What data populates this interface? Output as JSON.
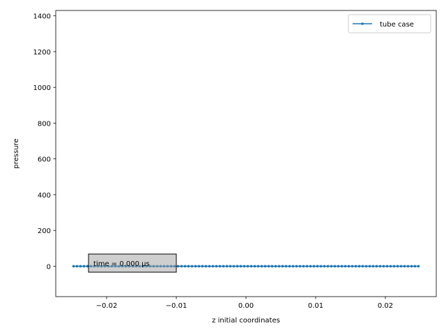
{
  "chart_data": {
    "type": "line",
    "xlabel": "z initial coordinates",
    "ylabel": "pressure",
    "xlim": [
      -0.0273,
      0.0273
    ],
    "ylim": [
      -170,
      1430
    ],
    "xticks": [
      -0.02,
      -0.01,
      0.0,
      0.01,
      0.02
    ],
    "xtick_labels": [
      "−0.02",
      "−0.01",
      "0.00",
      "0.01",
      "0.02"
    ],
    "yticks": [
      0,
      200,
      400,
      600,
      800,
      1000,
      1200,
      1400
    ],
    "ytick_labels": [
      "0",
      "200",
      "400",
      "600",
      "800",
      "1000",
      "1200",
      "1400"
    ],
    "grid": false,
    "legend_placement": "top-right",
    "series": [
      {
        "name": "tube case",
        "color": "#1f77b4",
        "marker": "point",
        "x_start": -0.02475,
        "x_step": 0.0005,
        "count": 100,
        "constant_y": 0
      }
    ],
    "annotation": {
      "text": "time = 0.000 μs",
      "x": -0.0222,
      "y": 0
    }
  }
}
